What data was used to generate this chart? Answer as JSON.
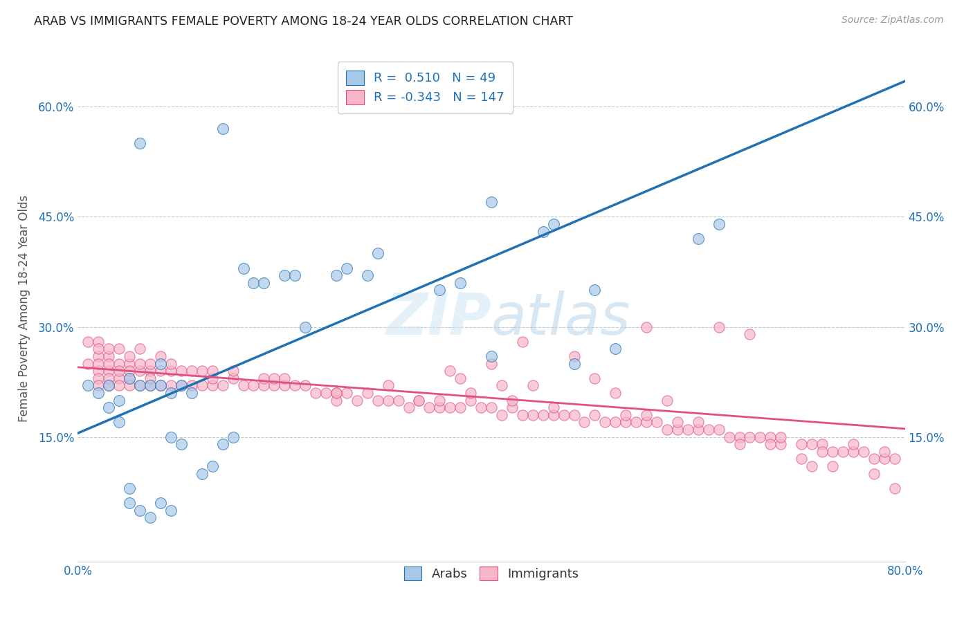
{
  "title": "ARAB VS IMMIGRANTS FEMALE POVERTY AMONG 18-24 YEAR OLDS CORRELATION CHART",
  "source": "Source: ZipAtlas.com",
  "ylabel": "Female Poverty Among 18-24 Year Olds",
  "xlim": [
    0.0,
    0.8
  ],
  "ylim": [
    -0.02,
    0.67
  ],
  "ytick_positions": [
    0.15,
    0.3,
    0.45,
    0.6
  ],
  "ytick_labels": [
    "15.0%",
    "30.0%",
    "45.0%",
    "60.0%"
  ],
  "legend_R_arab": "0.510",
  "legend_N_arab": "49",
  "legend_R_imm": "-0.343",
  "legend_N_imm": "147",
  "arab_fill_color": "#a8c8e8",
  "arab_line_color": "#2171b5",
  "imm_fill_color": "#f7b6c8",
  "imm_line_color": "#e05080",
  "watermark_color": "#d0e8f5",
  "arab_reg_intercept": 0.155,
  "arab_reg_slope": 0.6,
  "imm_reg_intercept": 0.245,
  "imm_reg_slope": -0.105,
  "arab_x": [
    0.01,
    0.02,
    0.03,
    0.03,
    0.04,
    0.04,
    0.05,
    0.05,
    0.05,
    0.06,
    0.06,
    0.07,
    0.07,
    0.08,
    0.08,
    0.08,
    0.09,
    0.09,
    0.09,
    0.1,
    0.1,
    0.11,
    0.12,
    0.13,
    0.14,
    0.15,
    0.16,
    0.17,
    0.18,
    0.2,
    0.21,
    0.22,
    0.25,
    0.26,
    0.28,
    0.29,
    0.35,
    0.37,
    0.4,
    0.45,
    0.46,
    0.48,
    0.5,
    0.52,
    0.6,
    0.62,
    0.14,
    0.06,
    0.4
  ],
  "arab_y": [
    0.22,
    0.21,
    0.19,
    0.22,
    0.17,
    0.2,
    0.06,
    0.08,
    0.23,
    0.05,
    0.22,
    0.04,
    0.22,
    0.06,
    0.22,
    0.25,
    0.05,
    0.15,
    0.21,
    0.14,
    0.22,
    0.21,
    0.1,
    0.11,
    0.14,
    0.15,
    0.38,
    0.36,
    0.36,
    0.37,
    0.37,
    0.3,
    0.37,
    0.38,
    0.37,
    0.4,
    0.35,
    0.36,
    0.26,
    0.43,
    0.44,
    0.25,
    0.35,
    0.27,
    0.42,
    0.44,
    0.57,
    0.55,
    0.47
  ],
  "imm_x": [
    0.01,
    0.01,
    0.02,
    0.02,
    0.02,
    0.02,
    0.02,
    0.02,
    0.02,
    0.03,
    0.03,
    0.03,
    0.03,
    0.03,
    0.03,
    0.04,
    0.04,
    0.04,
    0.04,
    0.04,
    0.05,
    0.05,
    0.05,
    0.05,
    0.05,
    0.06,
    0.06,
    0.06,
    0.06,
    0.07,
    0.07,
    0.07,
    0.07,
    0.08,
    0.08,
    0.08,
    0.09,
    0.09,
    0.09,
    0.1,
    0.1,
    0.11,
    0.11,
    0.12,
    0.12,
    0.13,
    0.13,
    0.13,
    0.14,
    0.15,
    0.15,
    0.16,
    0.17,
    0.18,
    0.18,
    0.19,
    0.19,
    0.2,
    0.2,
    0.21,
    0.22,
    0.23,
    0.24,
    0.25,
    0.25,
    0.26,
    0.27,
    0.28,
    0.29,
    0.3,
    0.31,
    0.32,
    0.33,
    0.34,
    0.35,
    0.35,
    0.36,
    0.37,
    0.38,
    0.39,
    0.4,
    0.41,
    0.42,
    0.42,
    0.43,
    0.44,
    0.45,
    0.46,
    0.47,
    0.48,
    0.49,
    0.5,
    0.51,
    0.52,
    0.53,
    0.54,
    0.55,
    0.55,
    0.56,
    0.57,
    0.58,
    0.59,
    0.6,
    0.61,
    0.62,
    0.63,
    0.64,
    0.65,
    0.66,
    0.67,
    0.68,
    0.68,
    0.7,
    0.71,
    0.72,
    0.73,
    0.74,
    0.75,
    0.75,
    0.76,
    0.77,
    0.78,
    0.78,
    0.79,
    0.55,
    0.62,
    0.65,
    0.72,
    0.43,
    0.48,
    0.36,
    0.3,
    0.25,
    0.4,
    0.5,
    0.6,
    0.7,
    0.33,
    0.38,
    0.44,
    0.52,
    0.58,
    0.64,
    0.71,
    0.77,
    0.46,
    0.53,
    0.57,
    0.67,
    0.73,
    0.79,
    0.41,
    0.37
  ],
  "imm_y": [
    0.28,
    0.25,
    0.24,
    0.26,
    0.23,
    0.25,
    0.28,
    0.22,
    0.27,
    0.24,
    0.22,
    0.26,
    0.23,
    0.25,
    0.27,
    0.23,
    0.25,
    0.22,
    0.24,
    0.27,
    0.23,
    0.25,
    0.22,
    0.24,
    0.26,
    0.22,
    0.24,
    0.25,
    0.27,
    0.22,
    0.24,
    0.25,
    0.23,
    0.22,
    0.24,
    0.26,
    0.22,
    0.24,
    0.25,
    0.22,
    0.24,
    0.22,
    0.24,
    0.22,
    0.24,
    0.22,
    0.23,
    0.24,
    0.22,
    0.23,
    0.24,
    0.22,
    0.22,
    0.22,
    0.23,
    0.22,
    0.23,
    0.22,
    0.23,
    0.22,
    0.22,
    0.21,
    0.21,
    0.21,
    0.2,
    0.21,
    0.2,
    0.21,
    0.2,
    0.2,
    0.2,
    0.19,
    0.2,
    0.19,
    0.19,
    0.2,
    0.19,
    0.19,
    0.2,
    0.19,
    0.19,
    0.18,
    0.19,
    0.2,
    0.18,
    0.18,
    0.18,
    0.18,
    0.18,
    0.18,
    0.17,
    0.18,
    0.17,
    0.17,
    0.17,
    0.17,
    0.17,
    0.18,
    0.17,
    0.16,
    0.16,
    0.16,
    0.16,
    0.16,
    0.16,
    0.15,
    0.15,
    0.15,
    0.15,
    0.15,
    0.14,
    0.15,
    0.14,
    0.14,
    0.14,
    0.13,
    0.13,
    0.13,
    0.14,
    0.13,
    0.12,
    0.12,
    0.13,
    0.12,
    0.3,
    0.3,
    0.29,
    0.13,
    0.28,
    0.26,
    0.24,
    0.22,
    0.21,
    0.25,
    0.23,
    0.17,
    0.12,
    0.2,
    0.21,
    0.22,
    0.21,
    0.17,
    0.14,
    0.11,
    0.1,
    0.19,
    0.18,
    0.2,
    0.14,
    0.11,
    0.08,
    0.22,
    0.23
  ]
}
